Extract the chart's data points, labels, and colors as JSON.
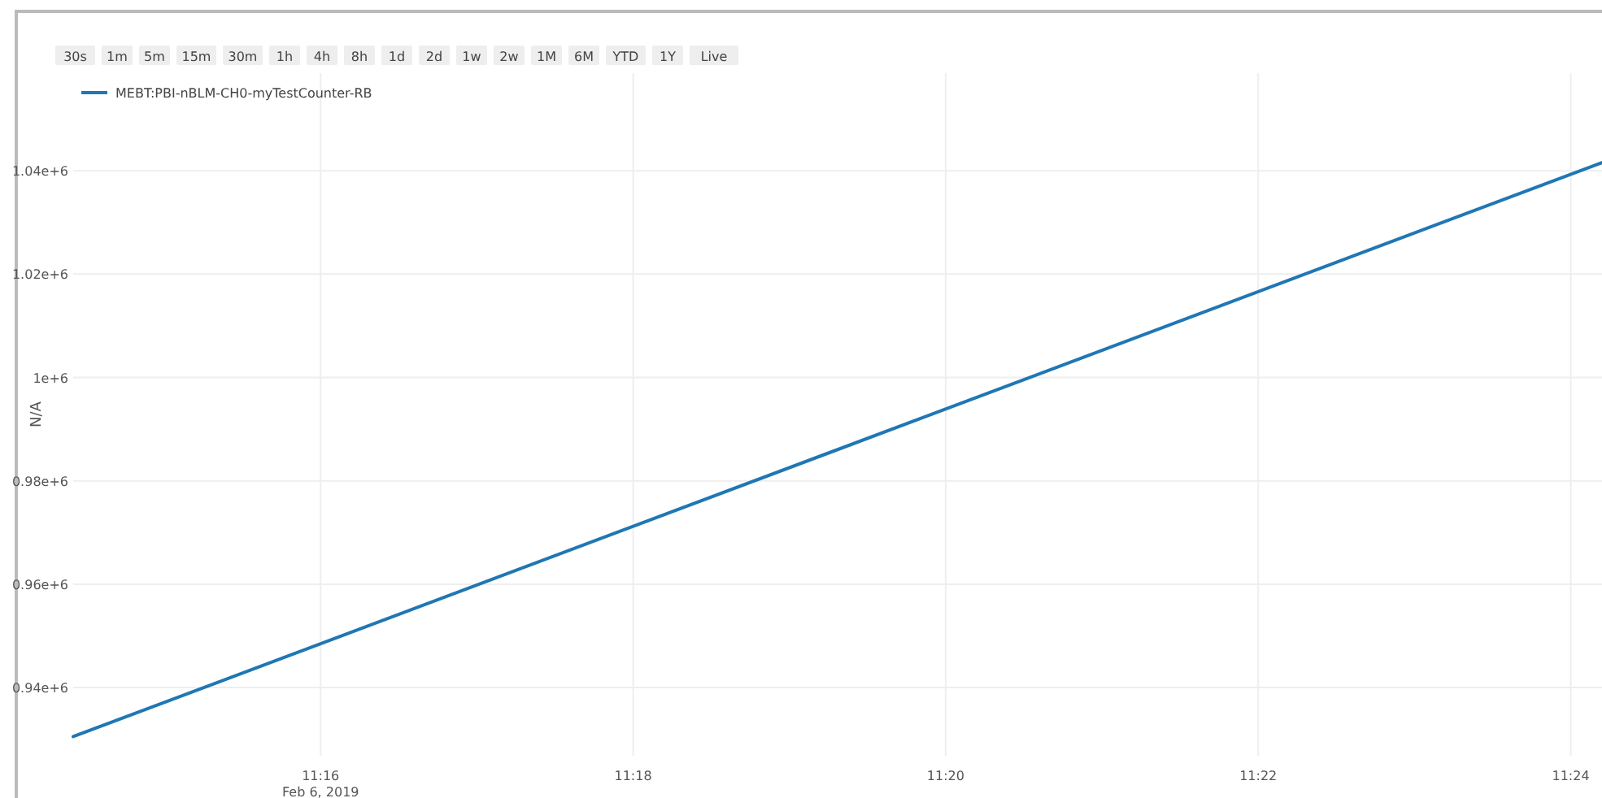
{
  "chart_data": {
    "type": "line",
    "ylabel": "N/A",
    "annotations": [
      "30s",
      "1m",
      "5m",
      "15m",
      "30m",
      "1h",
      "4h",
      "8h",
      "1d",
      "2d",
      "1w",
      "2w",
      "1M",
      "6M",
      "YTD",
      "1Y",
      "Live",
      "Feb 6, 2019"
    ],
    "x": [
      "2019-02-06T11:14:25",
      "2019-02-06T11:24:12"
    ],
    "series": [
      {
        "name": "MEBT:PBI-nBLM-CH0-myTestCounter-RB",
        "color": "#1f77b4",
        "values": [
          930500,
          1041600
        ]
      }
    ],
    "xlim": [
      "2019-02-06T11:14:25",
      "2019-02-06T11:24:12"
    ],
    "xticks": [
      {
        "value": "2019-02-06T11:16",
        "label": "11:16"
      },
      {
        "value": "2019-02-06T11:18",
        "label": "11:18"
      },
      {
        "value": "2019-02-06T11:20",
        "label": "11:20"
      },
      {
        "value": "2019-02-06T11:22",
        "label": "11:22"
      },
      {
        "value": "2019-02-06T11:24",
        "label": "11:24"
      }
    ],
    "ylim": [
      926800,
      1058900
    ],
    "yticks": [
      {
        "value": 940000,
        "label": "0.94e+6"
      },
      {
        "value": 960000,
        "label": "0.96e+6"
      },
      {
        "value": 980000,
        "label": "0.98e+6"
      },
      {
        "value": 1000000,
        "label": "1e+6"
      },
      {
        "value": 1020000,
        "label": "1.02e+6"
      },
      {
        "value": 1040000,
        "label": "1.04e+6"
      }
    ],
    "grid": true,
    "legend": "top left",
    "line_style": "solid",
    "marker": "none"
  }
}
